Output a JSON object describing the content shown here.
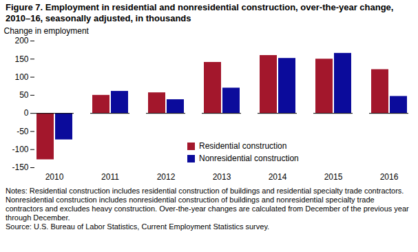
{
  "chart_data": {
    "type": "bar",
    "title": "Figure 7. Employment in residential and nonresidential construction, over-the-year change, 2010–16, seasonally adjusted, in thousands",
    "y_label": "Change in employment",
    "categories": [
      "2010",
      "2011",
      "2012",
      "2013",
      "2014",
      "2015",
      "2016"
    ],
    "series": [
      {
        "name": "Residential construction",
        "color": "#a3172c",
        "values": [
          -128,
          50,
          57,
          141,
          160,
          150,
          121
        ]
      },
      {
        "name": "Nonresidential construction",
        "color": "#0b0b9b",
        "values": [
          -73,
          61,
          38,
          70,
          152,
          166,
          47
        ]
      }
    ],
    "ylim": [
      -150,
      200
    ],
    "yticks": [
      -150,
      -100,
      -50,
      0,
      50,
      100,
      150,
      200
    ],
    "grid": false,
    "legend": "lower right",
    "notes": "Notes: Residential construction includes residential construction of buildings and residential specialty trade contractors. Nonresidential construction includes nonresidential construction of buildings and nonresidential specialty trade contractors and excludes heavy construction. Over-the-year changes are calculated from December of the previous year through December.",
    "source": "Source: U.S. Bureau of Labor Statistics, Current Employment Statistics survey."
  }
}
